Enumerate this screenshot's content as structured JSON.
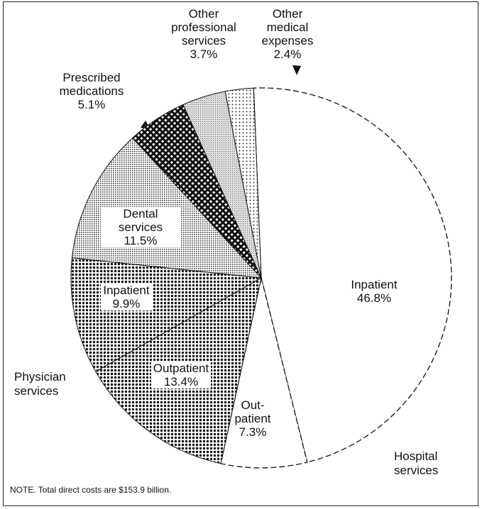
{
  "chart_data": {
    "type": "pie",
    "categories": [
      "Inpatient",
      "Out-patient",
      "Outpatient",
      "Inpatient",
      "Dental services",
      "Prescribed medications",
      "Other professional services",
      "Other medical expenses"
    ],
    "values": [
      46.8,
      7.3,
      13.4,
      9.9,
      11.5,
      5.1,
      3.7,
      2.4
    ],
    "value_labels": [
      "46.8%",
      "7.3%",
      "13.4%",
      "9.9%",
      "11.5%",
      "5.1%",
      "3.7%",
      "2.4%"
    ],
    "groups": [
      "Hospital services",
      "Physician services"
    ],
    "note": "NOTE. Total direct costs are $153.9 billion."
  }
}
